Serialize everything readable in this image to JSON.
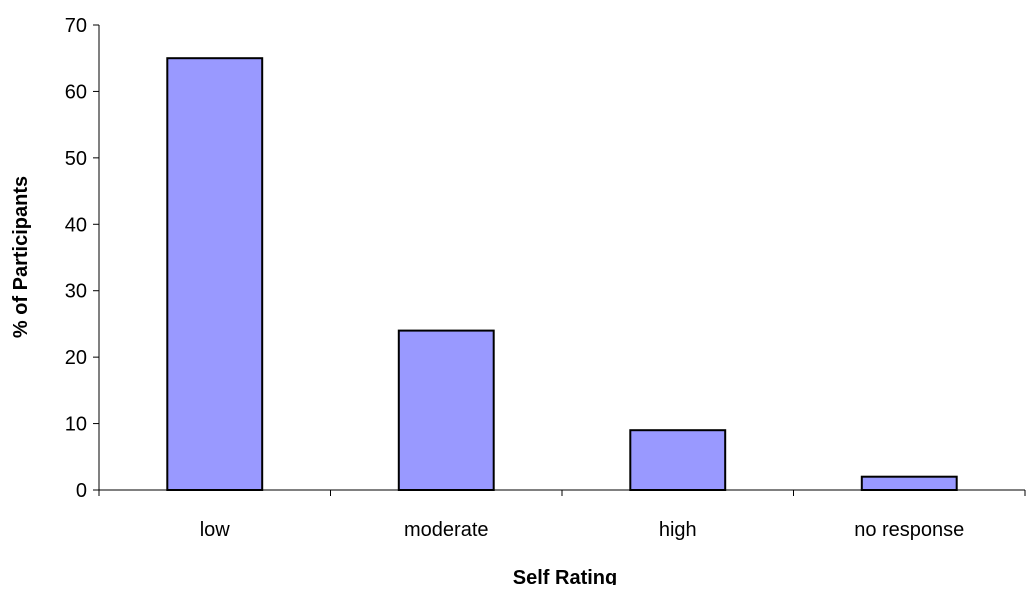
{
  "chart_data": {
    "type": "bar",
    "title": "",
    "xlabel": "Self Rating",
    "ylabel": "% of Participants",
    "categories": [
      "low",
      "moderate",
      "high",
      "no response"
    ],
    "values": [
      65,
      24,
      9,
      2
    ],
    "ylim": [
      0,
      70
    ],
    "yticks": [
      0,
      10,
      20,
      30,
      40,
      50,
      60,
      70
    ],
    "grid": false,
    "legend": "none",
    "colors": {
      "bar_fill": "#9999ff",
      "bar_stroke": "#000000",
      "axis": "#000000"
    }
  }
}
